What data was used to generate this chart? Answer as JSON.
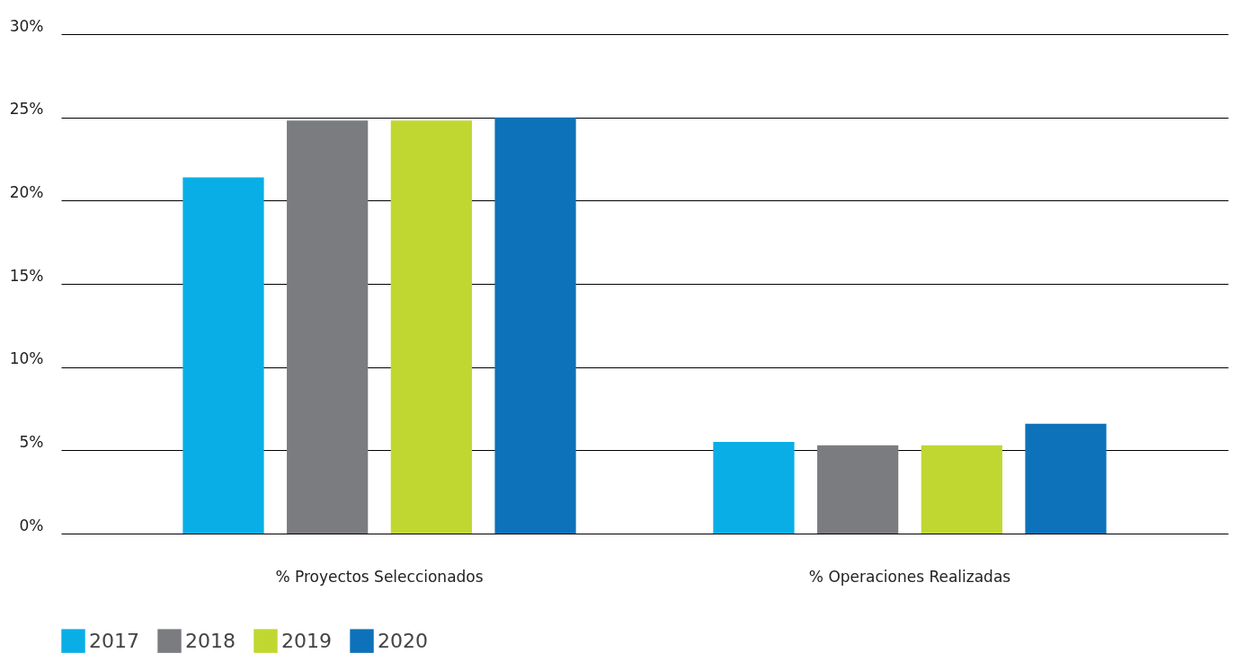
{
  "chart_data": {
    "type": "bar",
    "categories": [
      "% Proyectos Seleccionados",
      "% Operaciones Realizadas"
    ],
    "series": [
      {
        "name": "2017",
        "color": "#0aaee6",
        "values": [
          21.4,
          5.5
        ]
      },
      {
        "name": "2018",
        "color": "#7b7c80",
        "values": [
          24.8,
          5.3
        ]
      },
      {
        "name": "2019",
        "color": "#c1d731",
        "values": [
          24.8,
          5.3
        ]
      },
      {
        "name": "2020",
        "color": "#0d72b9",
        "values": [
          25.0,
          6.6
        ]
      }
    ],
    "ylim": [
      0,
      30
    ],
    "yticks": [
      {
        "value": 0,
        "label": "0%"
      },
      {
        "value": 5,
        "label": "5%"
      },
      {
        "value": 10,
        "label": "10%"
      },
      {
        "value": 15,
        "label": "15%"
      },
      {
        "value": 20,
        "label": "20%"
      },
      {
        "value": 25,
        "label": "25%"
      },
      {
        "value": 30,
        "label": "30%"
      }
    ],
    "grid": "y",
    "legend": "bottom"
  }
}
